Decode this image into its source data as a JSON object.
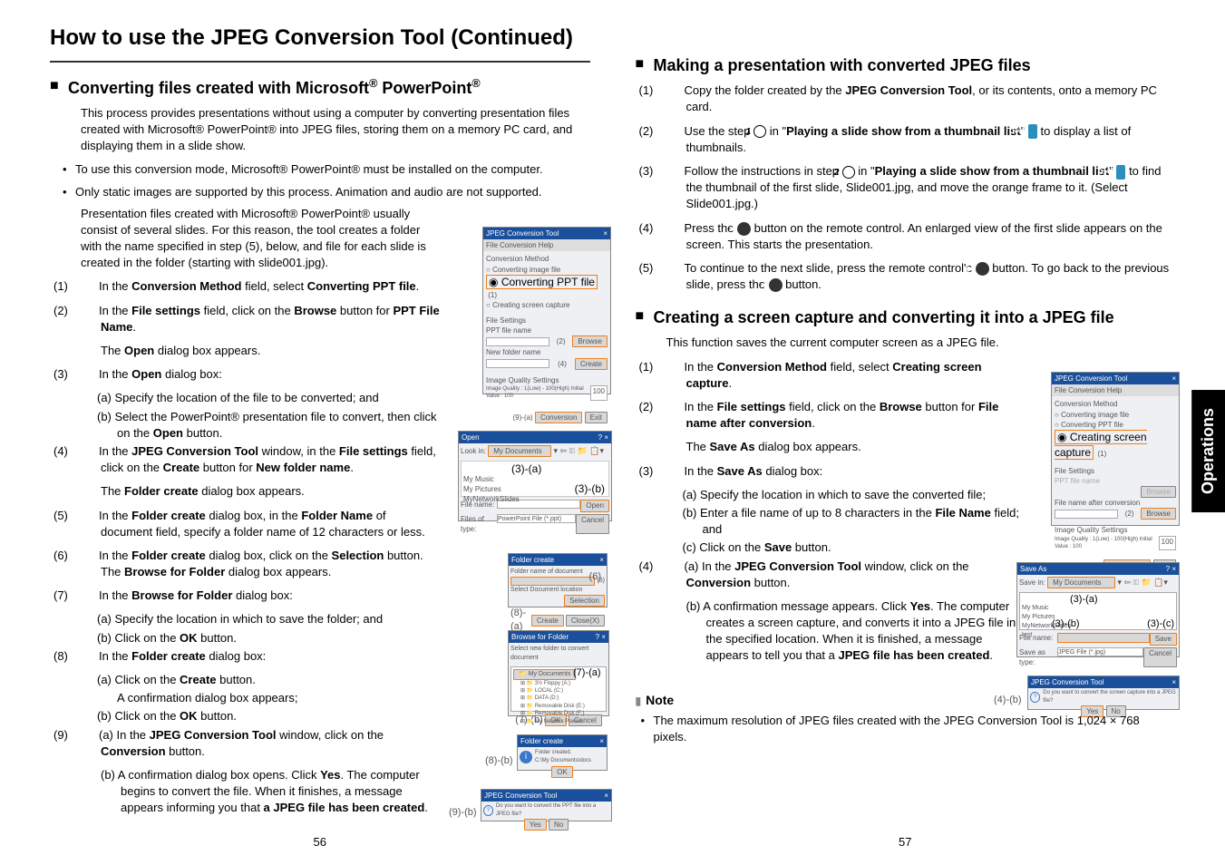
{
  "page": {
    "title": "How to use the JPEG Conversion Tool (Continued)",
    "leftNum": "56",
    "rightNum": "57",
    "sideTab": "Operations"
  },
  "sectionA": {
    "title": "Converting files created with Microsoft® PowerPoint®",
    "intro": "This process provides presentations without using a computer by converting presentation files created with Microsoft® PowerPoint® into JPEG files, storing them on a memory PC card, and displaying them in a slide show.",
    "bullets": [
      "To use this conversion mode, Microsoft® PowerPoint® must be installed on the computer.",
      "Only static images are supported by this process. Animation and audio are not supported."
    ],
    "intro2": "Presentation files created with Microsoft® PowerPoint® usually consist of several slides. For this reason, the tool creates a folder with the name specified in step (5), below, and file for each slide is created in the folder (starting with slide001.jpg).",
    "steps": [
      {
        "n": "(1)",
        "html": "In the <b>Conversion Method</b> field, select <b>Converting PPT file</b>."
      },
      {
        "n": "(2)",
        "html": "In the <b>File settings</b> field, click on the <b>Browse</b> button for <b>PPT File Name</b>."
      },
      {
        "t": "The <b>Open</b> dialog box appears."
      },
      {
        "n": "(3)",
        "html": "In the <b>Open</b> dialog box:"
      },
      {
        "sub": "(a) Specify the location of the file to be converted; and"
      },
      {
        "sub": "(b) Select the PowerPoint® presentation file to convert, then click on the <b>Open</b> button."
      },
      {
        "n": "(4)",
        "html": "In the <b>JPEG Conversion Tool</b> window, in the <b>File settings</b> field, click on the <b>Create</b> button for <b>New folder name</b>."
      },
      {
        "t": "The <b>Folder create</b> dialog box appears."
      },
      {
        "n": "(5)",
        "html": "In the <b>Folder create</b> dialog box, in the <b>Folder Name</b> of document field, specify a folder name of 12 characters or less."
      },
      {
        "n": "(6)",
        "html": "In the <b>Folder create</b> dialog box, click on the <b>Selection</b> button. The <b>Browse for Folder</b> dialog box appears."
      },
      {
        "n": "(7)",
        "html": "In the <b>Browse for Folder</b> dialog box:"
      },
      {
        "sub": "(a) Specify the location in which to save the folder; and"
      },
      {
        "sub": "(b) Click on the <b>OK</b> button."
      },
      {
        "n": "(8)",
        "html": "In the <b>Folder create</b> dialog box:"
      },
      {
        "sub": "(a) Click on the <b>Create</b> button."
      },
      {
        "subt": "A confirmation dialog box appears;"
      },
      {
        "sub": "(b) Click on the <b>OK</b> button."
      },
      {
        "n": "(9)",
        "html": "(a) In the <b>JPEG Conversion Tool</b> window, click on the <b>Conversion</b> button."
      },
      {
        "sub2": "(b) A confirmation dialog box opens. Click <b>Yes</b>. The computer begins to convert the file. When it finishes, a message appears informing you that <b>a JPEG file has been created</b>."
      }
    ]
  },
  "sectionB": {
    "title": "Making a presentation with converted JPEG files",
    "steps": [
      {
        "n": "(1)",
        "html": "Copy the folder created by the <b>JPEG Conversion Tool</b>, or its contents, onto a memory PC card."
      },
      {
        "n": "(2)",
        "html": "Use the step <span class='circle-num'>1</span> in \"<b>Playing a slide show from a thumbnail list</b>\" <span class='page-ref'>p.46</span> to display a list of thumbnails."
      },
      {
        "n": "(3)",
        "html": "Follow the instructions in step <span class='circle-num'>2</span> in \"<b>Playing a slide show from a thumbnail list</b>\" <span class='page-ref'>p.47</span> to find the thumbnail of the first slide, Slide001.jpg, and move the orange frame to it. (Select Slide001.jpg.)"
      },
      {
        "n": "(4)",
        "html": "Press the <span class='circle-btn'>●</span> button on the remote control. An enlarged view of the first slide appears on the screen. This starts the presentation."
      },
      {
        "n": "(5)",
        "html": "To continue to the next slide, press the remote control's <span class='circle-btn'>▶</span> button. To go back to the previous slide, press the <span class='circle-btn'>◀</span> button."
      }
    ]
  },
  "sectionC": {
    "title": "Creating a screen capture and converting it into a JPEG file",
    "intro": "This function saves the current computer screen as a JPEG file.",
    "steps": [
      {
        "n": "(1)",
        "html": "In the <b>Conversion Method</b> field, select <b>Creating screen capture</b>."
      },
      {
        "n": "(2)",
        "html": "In the <b>File settings</b> field, click on the <b>Browse</b> button for <b>File name after conversion</b>."
      },
      {
        "t": "The <b>Save As</b> dialog box appears."
      },
      {
        "n": "(3)",
        "html": "In the <b>Save As</b> dialog box:"
      },
      {
        "sub": "(a) Specify the location in which to save the converted file;"
      },
      {
        "sub": "(b) Enter a file name of up to 8 characters in the <b>File Name</b> field; and"
      },
      {
        "sub": "(c) Click on the <b>Save</b> button."
      },
      {
        "n": "(4)",
        "html": "(a) In the <b>JPEG Conversion Tool</b> window, click on the <b>Conversion</b> button."
      },
      {
        "sub2": "(b) A confirmation message appears. Click <b>Yes</b>. The computer creates a screen capture, and converts it into a JPEG file in the specified location. When it is finished, a message appears to tell you that a <b>JPEG file has been created</b>."
      }
    ]
  },
  "note": {
    "heading": "Note",
    "text": "The maximum resolution of JPEG files created with the JPEG Conversion Tool is 1,024 × 768 pixels."
  },
  "screenshots": {
    "jpegTool": {
      "title": "JPEG Conversion Tool",
      "menu": "File  Conversion  Help",
      "cmLabel": "Conversion Method",
      "opt1": "Converting image file",
      "opt2": "Converting PPT file",
      "opt3": "Creating screen capture",
      "fsLabel": "File Settings",
      "pptLabel": "PPT file name",
      "newFolder": "New folder name",
      "fileAfter": "File name after conversion",
      "iqsLabel": "Image Quality Settings",
      "iqText": "Image Quality : 1(Low) - 100(High) Initial Value : 100",
      "iqVal": "100",
      "browse": "Browse",
      "create": "Create",
      "exit": "Exit",
      "conversion": "Conversion"
    },
    "open": {
      "title": "Open",
      "lookIn": "Look in:",
      "myDocs": "My Documents",
      "folders": "My Music\nMy Pictures\nMyNetworkSlides",
      "fileName": "File name:",
      "fileType": "Files of type:",
      "typePpt": "PowerPoint File (*.ppt)",
      "open": "Open",
      "cancel": "Cancel"
    },
    "folderCreate": {
      "title": "Folder create",
      "fnLabel": "Folder name of document",
      "sdLabel": "Select Document location",
      "selection": "Selection",
      "create": "Create",
      "close(X)": "Close(X)",
      "msg": "Folder created.\nC:\\My Documents\\docs",
      "ok": "OK"
    },
    "browseFolder": {
      "title": "Browse for Folder",
      "label": "Select new folder to convert document",
      "ok": "OK",
      "cancel": "Cancel"
    },
    "confirm": {
      "title": "JPEG Conversion Tool",
      "msgPpt": "Do you want to convert the PPT file into a JPEG file?",
      "msgCap": "Do you want to convert the screen capture into a JPEG file?",
      "yes": "Yes",
      "no": "No"
    },
    "saveAs": {
      "title": "Save As",
      "saveIn": "Save in:",
      "myDocs": "My Documents",
      "folders": "My Music\nMy Pictures\nMyNetworkSlides\ntest",
      "fileName": "File name:",
      "saveType": "Save as type:",
      "typeJpg": "JPEG File (*.jpg)",
      "save": "Save",
      "cancel": "Cancel"
    },
    "annots": {
      "a1": "(1)",
      "a2": "(2)",
      "a3a": "(3)-(a)",
      "a3b": "(3)-(b)",
      "a3c": "(3)-(c)",
      "a4": "(4)",
      "a4a": "(4)-(a)",
      "a4b": "(4)-(b)",
      "a5": "(5)",
      "a6": "(6)",
      "a7a": "(7)-(a)",
      "a7b": "(7)-(b)",
      "a8a": "(8)-(a)",
      "a8b": "(8)-(b)",
      "a9a": "(9)-(a)",
      "a9b": "(9)-(b)"
    }
  }
}
